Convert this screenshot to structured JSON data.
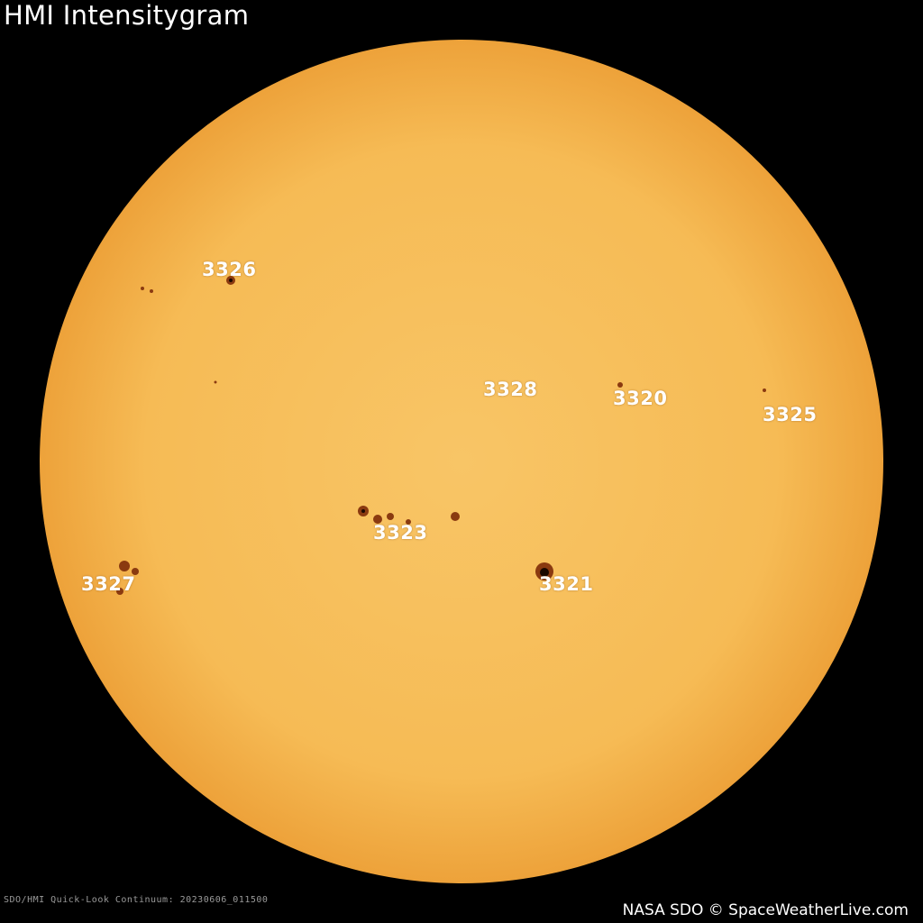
{
  "title": "HMI Intensitygram",
  "caption": "SDO/HMI Quick-Look Continuum: 20230606_011500",
  "credit": "NASA SDO © SpaceWeatherLive.com",
  "colors": {
    "background": "#000000",
    "sun_center": "#f8c566",
    "sun_limb": "#eea53c",
    "spot": "#8a3a10",
    "umbra": "#1a0800"
  },
  "regions": [
    {
      "label": "3326"
    },
    {
      "label": "3328"
    },
    {
      "label": "3320"
    },
    {
      "label": "3325"
    },
    {
      "label": "3323"
    },
    {
      "label": "3327"
    },
    {
      "label": "3321"
    }
  ]
}
